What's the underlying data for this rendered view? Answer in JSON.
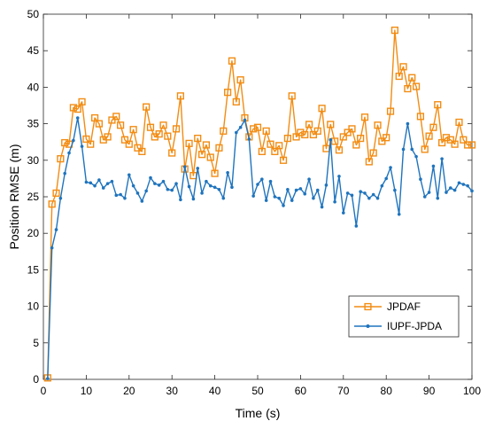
{
  "chart_data": {
    "type": "line",
    "title": "",
    "xlabel": "Time (s)",
    "ylabel": "Position RMSE (m)",
    "xlim": [
      0,
      100
    ],
    "ylim": [
      0,
      50
    ],
    "xticks": [
      0,
      10,
      20,
      30,
      40,
      50,
      60,
      70,
      80,
      90,
      100
    ],
    "yticks": [
      0,
      5,
      10,
      15,
      20,
      25,
      30,
      35,
      40,
      45,
      50
    ],
    "grid": false,
    "legend_position": "bottom-right",
    "x": [
      1,
      2,
      3,
      4,
      5,
      6,
      7,
      8,
      9,
      10,
      11,
      12,
      13,
      14,
      15,
      16,
      17,
      18,
      19,
      20,
      21,
      22,
      23,
      24,
      25,
      26,
      27,
      28,
      29,
      30,
      31,
      32,
      33,
      34,
      35,
      36,
      37,
      38,
      39,
      40,
      41,
      42,
      43,
      44,
      45,
      46,
      47,
      48,
      49,
      50,
      51,
      52,
      53,
      54,
      55,
      56,
      57,
      58,
      59,
      60,
      61,
      62,
      63,
      64,
      65,
      66,
      67,
      68,
      69,
      70,
      71,
      72,
      73,
      74,
      75,
      76,
      77,
      78,
      79,
      80,
      81,
      82,
      83,
      84,
      85,
      86,
      87,
      88,
      89,
      90,
      91,
      92,
      93,
      94,
      95,
      96,
      97,
      98,
      99,
      100
    ],
    "series": [
      {
        "name": "JPDAF",
        "color": "#f28c13",
        "marker": "square",
        "values": [
          0.2,
          24,
          25.5,
          30.2,
          32.4,
          32.2,
          37.2,
          37,
          38,
          32.9,
          32.2,
          35.8,
          35,
          32.8,
          33.2,
          35.5,
          36,
          34.8,
          32.8,
          32.2,
          34.2,
          31.7,
          31.2,
          37.3,
          34.5,
          33.2,
          33.6,
          34.8,
          33.3,
          31,
          34.3,
          38.8,
          28.8,
          32.3,
          27.9,
          33,
          30.8,
          32.1,
          30.4,
          28.2,
          31.7,
          34,
          39.3,
          43.6,
          38,
          41,
          35.8,
          33.2,
          34.3,
          34.5,
          31.2,
          34,
          32.2,
          31.2,
          32,
          30,
          33,
          38.8,
          33.2,
          33.8,
          33.5,
          34.9,
          33.5,
          34,
          37.1,
          31.6,
          34.9,
          32.6,
          31.4,
          33.2,
          33.8,
          34.3,
          32.1,
          33,
          35.9,
          29.8,
          31,
          34.8,
          32.6,
          33.1,
          36.7,
          47.8,
          41.5,
          42.8,
          39.8,
          41.3,
          40.1,
          36,
          31.5,
          33.3,
          34.5,
          37.6,
          32.4,
          33.1,
          32.8,
          32.2,
          35.2,
          32.8,
          32.1,
          32.1
        ]
      },
      {
        "name": "IUPF-JPDA",
        "color": "#1f74bd",
        "marker": "dot",
        "values": [
          0.1,
          18,
          20.5,
          24.8,
          28.2,
          31,
          32.7,
          35.8,
          31.9,
          27,
          26.9,
          26.5,
          27.3,
          26.2,
          26.8,
          27.1,
          25.2,
          25.3,
          24.8,
          28,
          26.5,
          25.5,
          24.4,
          25.8,
          27.6,
          26.8,
          26.6,
          27.1,
          26,
          25.9,
          26.8,
          24.6,
          29.1,
          26.4,
          24.7,
          28.9,
          25.5,
          27.1,
          26.5,
          26.3,
          26,
          24.8,
          28.3,
          26.3,
          33.8,
          34.5,
          35.5,
          32.9,
          25.1,
          26.7,
          27.4,
          24.5,
          27.1,
          25,
          24.8,
          23.8,
          26,
          24.5,
          25.9,
          26.1,
          25.4,
          27.4,
          24.8,
          25.9,
          23.6,
          26.6,
          32.8,
          24.3,
          27.8,
          22.8,
          25.5,
          25.2,
          21,
          25.7,
          25.5,
          24.8,
          25.3,
          24.8,
          26.5,
          27.5,
          29,
          25.9,
          22.6,
          31.5,
          35,
          31.5,
          30.5,
          27.4,
          25,
          25.6,
          29.2,
          24.8,
          30.2,
          25.6,
          26.2,
          25.9,
          26.9,
          26.7,
          26.5,
          25.8
        ]
      }
    ]
  }
}
